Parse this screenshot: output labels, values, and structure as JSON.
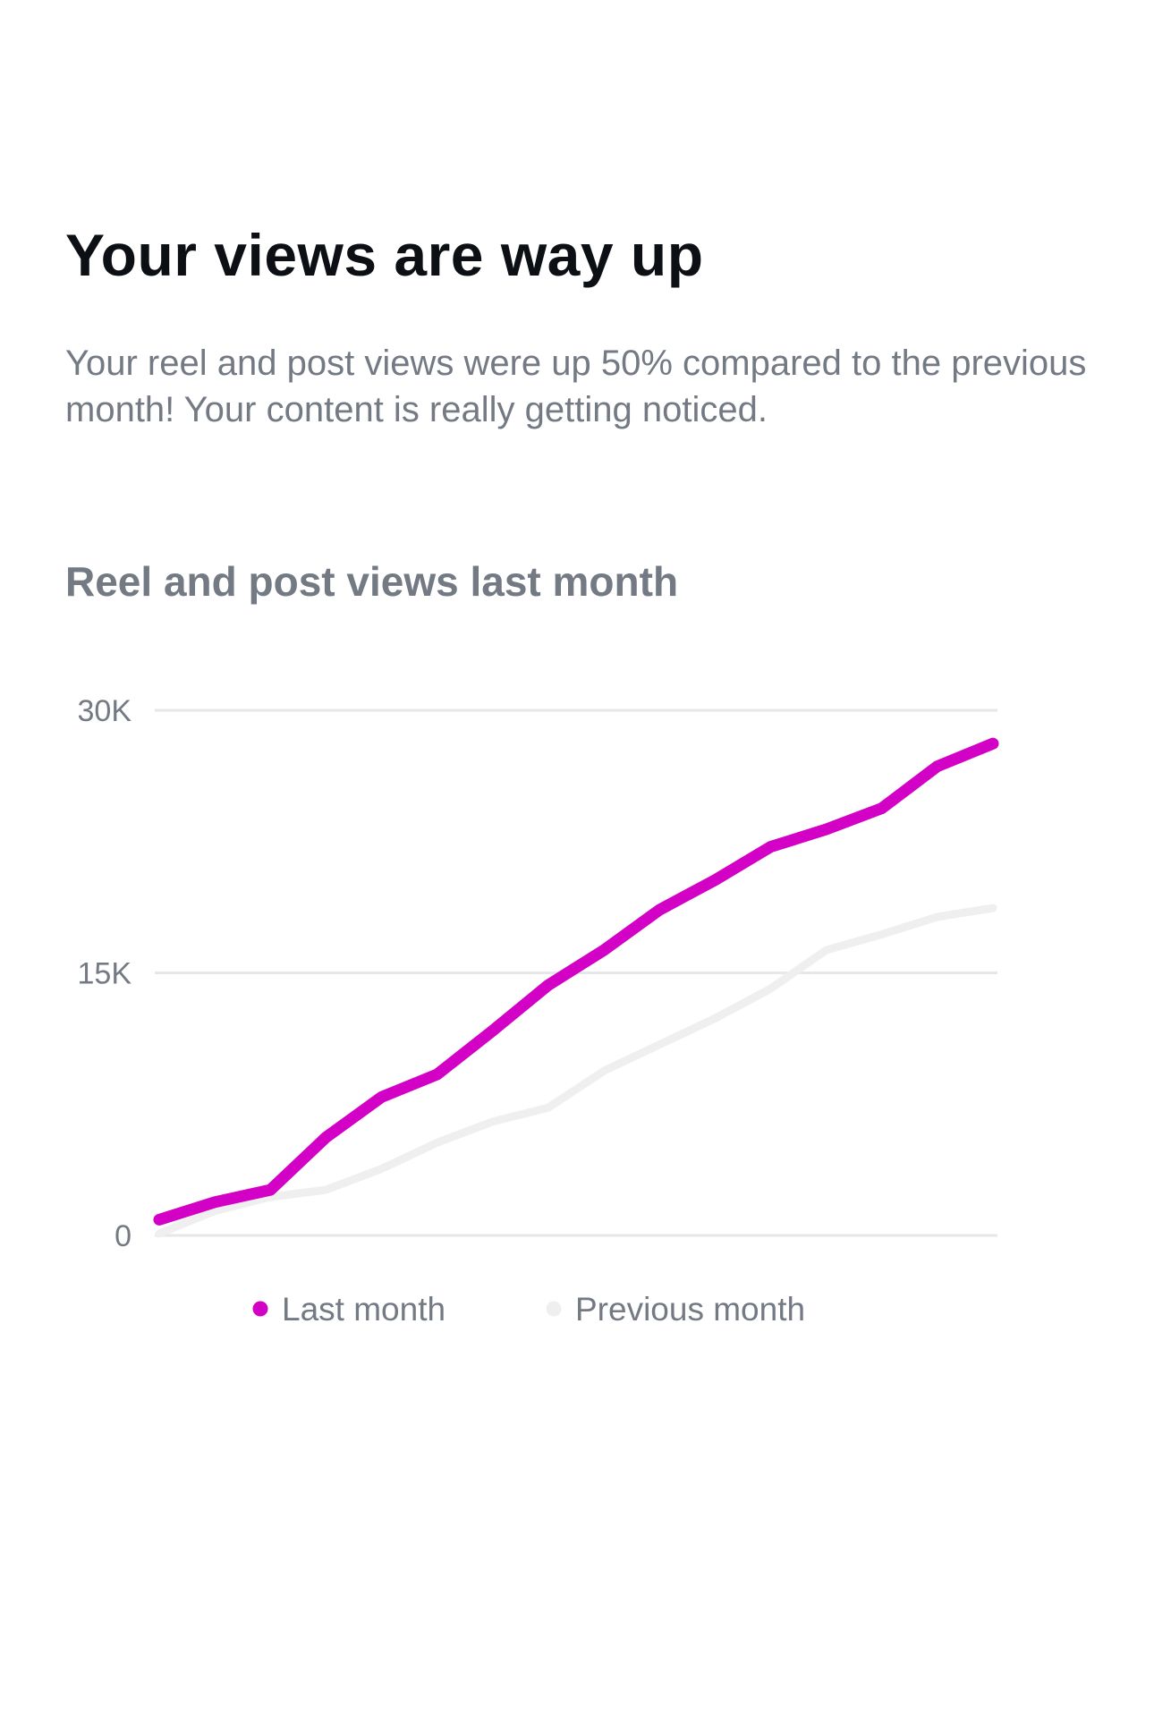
{
  "headline": "Your views are way up",
  "body": "Your reel and post views were up 50% compared to the previous month! Your content is really getting noticed.",
  "chart_data": {
    "type": "line",
    "title": "Reel and post views last month",
    "xlabel": "",
    "ylabel": "",
    "ylim": [
      0,
      30000
    ],
    "yticks": [
      {
        "value": 0,
        "label": "0"
      },
      {
        "value": 15000,
        "label": "15K"
      },
      {
        "value": 30000,
        "label": "30K"
      }
    ],
    "x": [
      1,
      2,
      3,
      4,
      5,
      6,
      7,
      8,
      9,
      10,
      11,
      12,
      13,
      14,
      15,
      16
    ],
    "series": [
      {
        "name": "Last month",
        "color": "#d300c5",
        "values": [
          900,
          1900,
          2600,
          5600,
          7900,
          9200,
          11700,
          14300,
          16300,
          18600,
          20300,
          22200,
          23200,
          24400,
          26800,
          28100
        ]
      },
      {
        "name": "Previous month",
        "color": "#efefef",
        "values": [
          100,
          1400,
          2200,
          2600,
          3800,
          5300,
          6500,
          7300,
          9400,
          10900,
          12400,
          14100,
          16300,
          17200,
          18200,
          18700
        ]
      }
    ],
    "legend": "bottom-center",
    "grid": true
  }
}
